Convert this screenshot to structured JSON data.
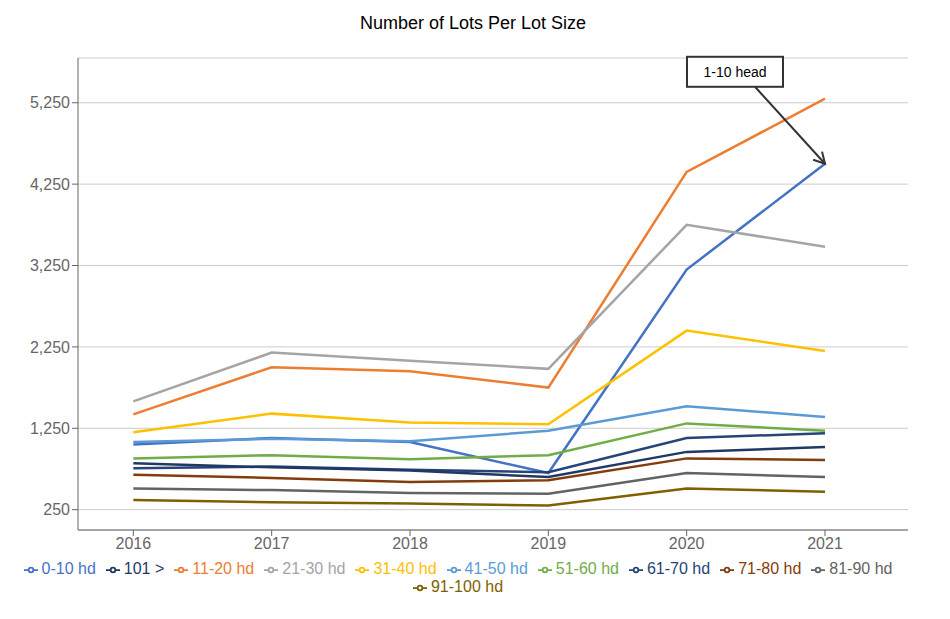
{
  "chart_data": {
    "type": "line",
    "title": "Number of Lots Per Lot Size",
    "x": [
      2016,
      2017,
      2018,
      2019,
      2020,
      2021
    ],
    "xlim": [
      2015.6,
      2021.6
    ],
    "xticks": [
      2016,
      2017,
      2018,
      2019,
      2020,
      2021
    ],
    "ylim": [
      0,
      5800
    ],
    "yticks": [
      250,
      {
        "value": 1250,
        "label": "1,250"
      },
      {
        "value": 2250,
        "label": "2,250"
      },
      {
        "value": 3250,
        "label": "3,250"
      },
      {
        "value": 4250,
        "label": "4,250"
      },
      {
        "value": 5250,
        "label": "5,250"
      }
    ],
    "grid": true,
    "legend": "bottom",
    "series": [
      {
        "name": "0-10 hd",
        "color": "#4472C4",
        "values": [
          1050,
          1130,
          1080,
          700,
          3200,
          4500
        ]
      },
      {
        "name": "11-20 hd",
        "color": "#ED7D31",
        "values": [
          1420,
          2000,
          1950,
          1750,
          4400,
          5300
        ]
      },
      {
        "name": "21-30 hd",
        "color": "#A5A5A5",
        "values": [
          1580,
          2180,
          2080,
          1980,
          3750,
          3480
        ]
      },
      {
        "name": "31-40 hd",
        "color": "#FFC000",
        "values": [
          1200,
          1430,
          1320,
          1300,
          2450,
          2200
        ]
      },
      {
        "name": "41-50 hd",
        "color": "#5B9BD5",
        "values": [
          1080,
          1120,
          1090,
          1220,
          1520,
          1390
        ]
      },
      {
        "name": "51-60 hd",
        "color": "#70AD47",
        "values": [
          880,
          920,
          870,
          920,
          1310,
          1220
        ]
      },
      {
        "name": "61-70 hd",
        "color": "#264478",
        "values": [
          760,
          780,
          740,
          710,
          1130,
          1190
        ]
      },
      {
        "name": "71-80 hd",
        "color": "#843C0C",
        "values": [
          680,
          640,
          590,
          610,
          880,
          860
        ]
      },
      {
        "name": "81-90 hd",
        "color": "#636363",
        "values": [
          510,
          490,
          455,
          445,
          700,
          650
        ]
      },
      {
        "name": "91-100 hd",
        "color": "#7F6000",
        "values": [
          370,
          340,
          325,
          300,
          510,
          470
        ]
      },
      {
        "name": "101 >",
        "color": "#1F3864",
        "values": [
          820,
          770,
          730,
          650,
          960,
          1020
        ]
      }
    ],
    "annotations": [
      {
        "text": "1-10 head",
        "x": 2021,
        "y": 4500
      }
    ]
  }
}
